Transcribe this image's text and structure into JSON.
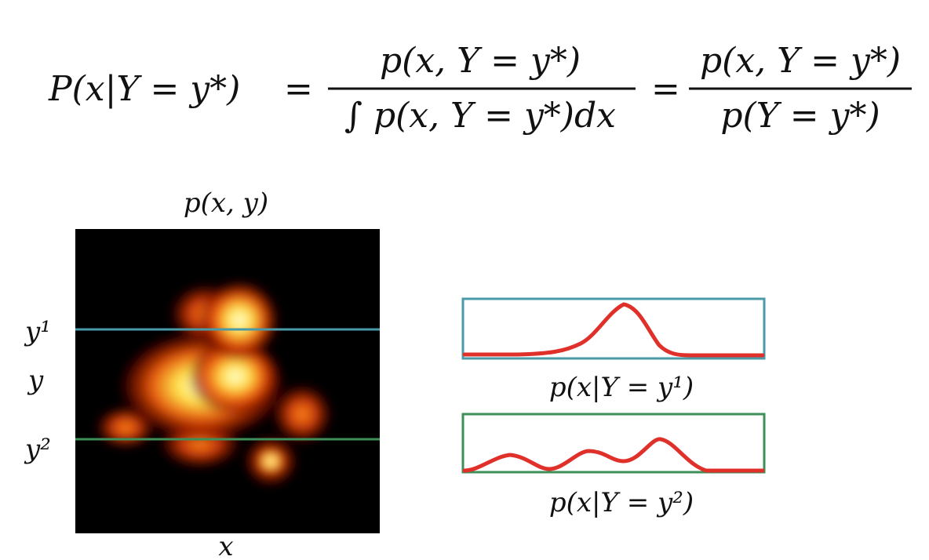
{
  "formula": {
    "lhs": "P(x|Y = y*)",
    "eq1": "=",
    "frac1_numerator": "p(x, Y = y*)",
    "frac1_denominator": "∫ p(x, Y = y*)dx",
    "eq2": "=",
    "frac2_numerator": "p(x, Y = y*)",
    "frac2_denominator": "p(Y = y*)"
  },
  "heatmap": {
    "title": "p(x, y)",
    "x_label": "x",
    "y_label": "y",
    "y1_label": "y¹",
    "y2_label": "y²",
    "line_y1_color": "#4a9aa8",
    "line_y2_color": "#3f8f5a"
  },
  "conditionals": [
    {
      "caption": "p(x|Y = y¹)",
      "frame_color": "#4a9aa8",
      "curve_color": "#e0302a"
    },
    {
      "caption": "p(x|Y = y²)",
      "frame_color": "#3f8f5a",
      "curve_color": "#e0302a"
    }
  ]
}
